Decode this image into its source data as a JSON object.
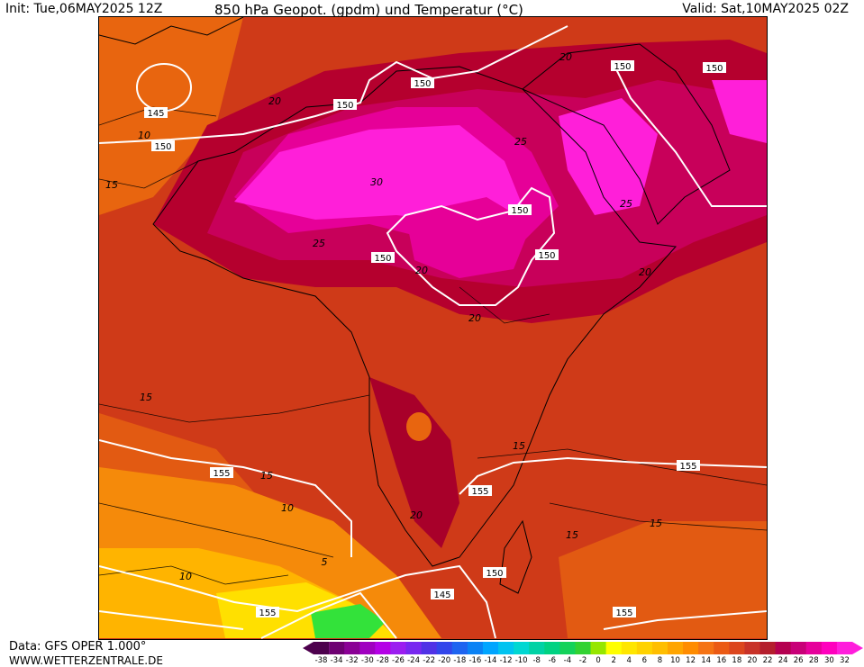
{
  "header": {
    "init": "Init: Tue,06MAY2025 12Z",
    "title": "850 hPa Geopot. (gpdm) und Temperatur (°C)",
    "valid": "Valid: Sat,10MAY2025 02Z"
  },
  "footer": {
    "data_source": "Data: GFS OPER 1.000°",
    "website": "WWW.WETTERZENTRALE.DE"
  },
  "map": {
    "region": "Africa",
    "geopotential_labels": [
      "145",
      "150",
      "150",
      "150",
      "150",
      "150",
      "150",
      "150",
      "150",
      "150",
      "155",
      "155",
      "155",
      "155",
      "145",
      "155"
    ],
    "temperature_labels": [
      "10",
      "15",
      "20",
      "25",
      "30",
      "25",
      "20",
      "20",
      "25",
      "15",
      "15",
      "20",
      "20",
      "15",
      "10",
      "10",
      "15",
      "20",
      "15",
      "5"
    ],
    "colors": {
      "hot_magenta": "#ff1fd9",
      "deep_red": "#b0002e",
      "red": "#c82818",
      "orange_red": "#e04a12",
      "orange": "#f58a0a",
      "yellow_orange": "#ffc800",
      "yellow": "#fff000",
      "green": "#33e23a",
      "isohypse": "#ffffff"
    }
  },
  "colorbar": {
    "ticks": [
      "-38",
      "-34",
      "-32",
      "-30",
      "-28",
      "-26",
      "-24",
      "-22",
      "-20",
      "-18",
      "-16",
      "-14",
      "-12",
      "-10",
      "-8",
      "-6",
      "-4",
      "-2",
      "0",
      "2",
      "4",
      "6",
      "8",
      "10",
      "12",
      "14",
      "16",
      "18",
      "20",
      "22",
      "24",
      "26",
      "28",
      "30",
      "32"
    ],
    "colors": [
      "#4d004d",
      "#6e0072",
      "#8a0095",
      "#a000c0",
      "#b400e6",
      "#9b1ef0",
      "#7828f0",
      "#5032e6",
      "#3246eb",
      "#1e64f0",
      "#0a82f5",
      "#00a5ff",
      "#00c3f0",
      "#00d7d2",
      "#00d2a5",
      "#00d282",
      "#14d25a",
      "#32d232",
      "#96e600",
      "#ffff00",
      "#ffe600",
      "#ffd200",
      "#ffbe00",
      "#ffa500",
      "#ff8c00",
      "#f57314",
      "#eb5a14",
      "#dc461e",
      "#c83228",
      "#b41e2d",
      "#b40050",
      "#c80078",
      "#e6009b",
      "#ff00be",
      "#ff1edc"
    ]
  }
}
